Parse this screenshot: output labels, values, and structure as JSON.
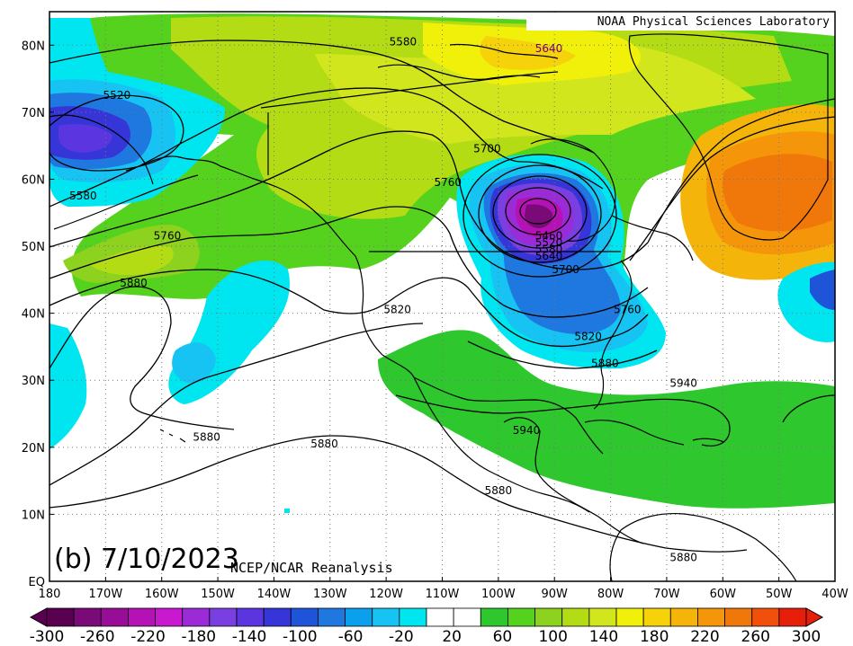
{
  "credit": "NOAA Physical Sciences Laboratory",
  "panel_title": "(b) 7/10/2023",
  "source": "NCEP/NCAR Reanalysis",
  "lat_labels": [
    "80N",
    "70N",
    "60N",
    "50N",
    "40N",
    "30N",
    "20N",
    "10N",
    "EQ"
  ],
  "lon_labels": [
    "180",
    "170W",
    "160W",
    "150W",
    "140W",
    "130W",
    "120W",
    "110W",
    "100W",
    "90W",
    "80W",
    "70W",
    "60W",
    "50W",
    "40W"
  ],
  "contour_labels": [
    {
      "text": "5580",
      "lon": -117,
      "lat": 80
    },
    {
      "text": "5520",
      "lon": -168,
      "lat": 72
    },
    {
      "text": "5700",
      "lon": -102,
      "lat": 64
    },
    {
      "text": "5760",
      "lon": -109,
      "lat": 59
    },
    {
      "text": "5580",
      "lon": -174,
      "lat": 57
    },
    {
      "text": "5760",
      "lon": -159,
      "lat": 51
    },
    {
      "text": "5880",
      "lon": -165,
      "lat": 44
    },
    {
      "text": "5820",
      "lon": -118,
      "lat": 40
    },
    {
      "text": "5460",
      "lon": -91,
      "lat": 51
    },
    {
      "text": "5520",
      "lon": -91,
      "lat": 50
    },
    {
      "text": "5580",
      "lon": -91,
      "lat": 49
    },
    {
      "text": "5640",
      "lon": -91,
      "lat": 48
    },
    {
      "text": "5700",
      "lon": -88,
      "lat": 46
    },
    {
      "text": "5760",
      "lon": -77,
      "lat": 40
    },
    {
      "text": "5820",
      "lon": -84,
      "lat": 36
    },
    {
      "text": "5880",
      "lon": -81,
      "lat": 32
    },
    {
      "text": "5940",
      "lon": -67,
      "lat": 29
    },
    {
      "text": "5940",
      "lon": -95,
      "lat": 22
    },
    {
      "text": "5880",
      "lon": -152,
      "lat": 21
    },
    {
      "text": "5880",
      "lon": -131,
      "lat": 20
    },
    {
      "text": "5880",
      "lon": -100,
      "lat": 13
    },
    {
      "text": "5880",
      "lon": -67,
      "lat": 3
    }
  ],
  "contour_label_purple": {
    "text": "5640",
    "lon": -91,
    "lat": 79
  },
  "colorbar": {
    "labels": [
      "-300",
      "-260",
      "-220",
      "-180",
      "-140",
      "-100",
      "-60",
      "-20",
      "20",
      "60",
      "100",
      "140",
      "180",
      "220",
      "260",
      "300"
    ],
    "colors": [
      "#5a0050",
      "#7a0a78",
      "#980d98",
      "#b512b5",
      "#c819d0",
      "#9a2bd6",
      "#7a3fe0",
      "#5b36e0",
      "#3636d8",
      "#1e54d8",
      "#1e78e0",
      "#0aa0ee",
      "#17c3f2",
      "#00e6f0",
      "#ffffff",
      "#ffffff",
      "#2ec82e",
      "#55d21e",
      "#8cd21e",
      "#b4dc14",
      "#d2e61e",
      "#f0f00a",
      "#f5d20a",
      "#f5b40a",
      "#f5960a",
      "#f0780a",
      "#f0500a",
      "#e61e0a"
    ]
  },
  "colors": {
    "land_outline": "#000000",
    "contour": "#000000",
    "grid": "#777777"
  }
}
